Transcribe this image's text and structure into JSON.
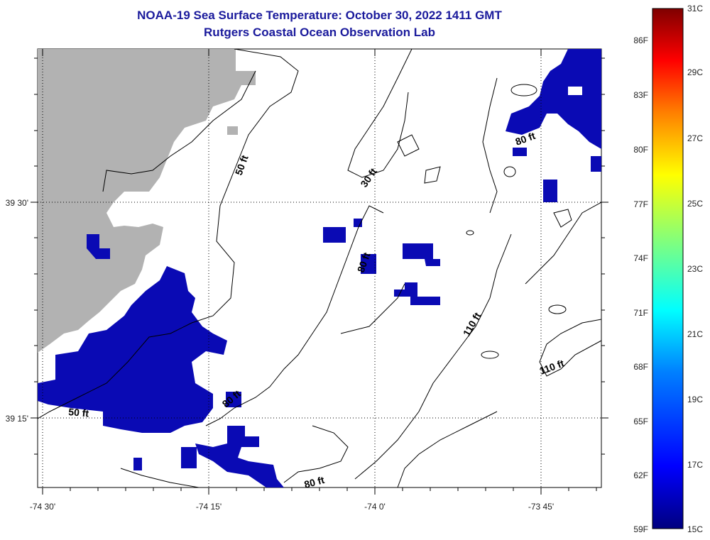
{
  "title": "NOAA-19 Sea Surface Temperature:  October 30, 2022 1411 GMT",
  "subtitle": "Rutgers Coastal Ocean Observation Lab",
  "axes": {
    "x_ticks": [
      "-74 30'",
      "-74 15'",
      "-74 0'",
      "-73 45'"
    ],
    "y_ticks": [
      "39 30'",
      "39 15'"
    ]
  },
  "contour_labels": [
    "50 ft",
    "30 ft",
    "80 ft",
    "80 ft",
    "110 ft",
    "110 ft",
    "50 ft",
    "80 ft",
    "80 ft"
  ],
  "colorbar": {
    "f_labels": [
      "86F",
      "83F",
      "80F",
      "77F",
      "74F",
      "71F",
      "68F",
      "65F",
      "62F",
      "59F"
    ],
    "c_labels": [
      "31C",
      "29C",
      "27C",
      "25C",
      "23C",
      "21C",
      "19C",
      "17C",
      "15C"
    ],
    "colors": [
      "#00007f",
      "#0000ff",
      "#007fff",
      "#00ffff",
      "#7fff7f",
      "#ffff00",
      "#ff7f00",
      "#ff0000",
      "#7f0000"
    ]
  },
  "colors": {
    "land": "#b2b2b2",
    "sst_cold": "#0a0ab4",
    "title": "#1a1a9c"
  }
}
